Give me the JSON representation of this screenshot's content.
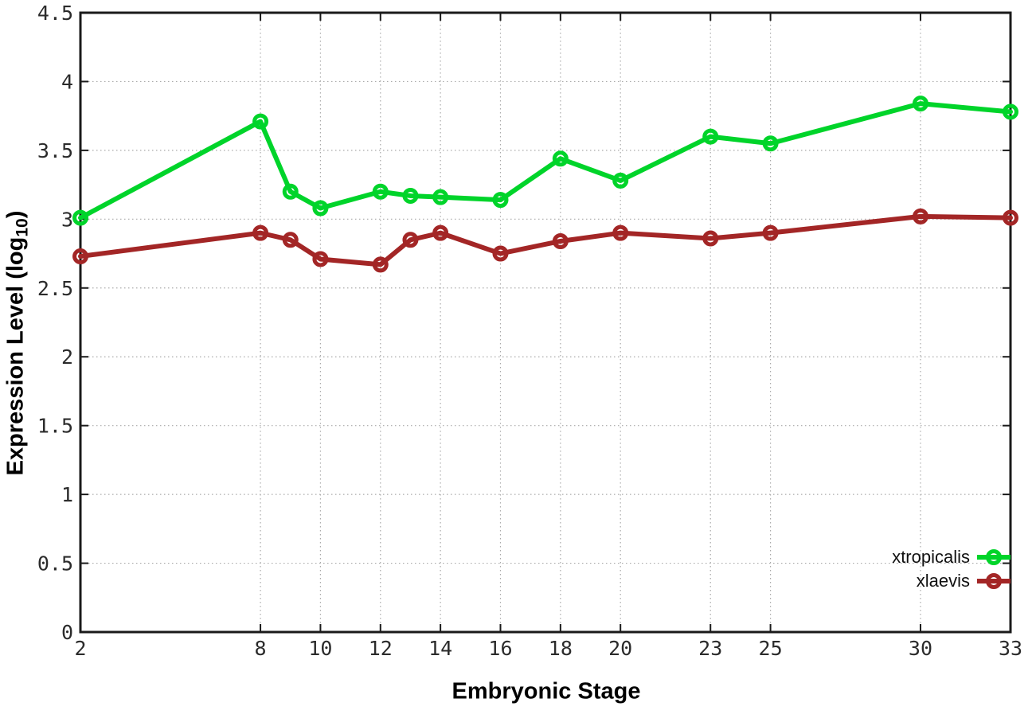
{
  "chart_data": {
    "type": "line",
    "title": "",
    "xlabel": "Embryonic Stage",
    "ylabel": "Expression Level (log10)",
    "ylabel_parts": {
      "main": "Expression Level (log",
      "sub": "10",
      "close": ")"
    },
    "x": [
      2,
      8,
      9,
      10,
      12,
      13,
      14,
      16,
      18,
      20,
      23,
      25,
      30,
      33
    ],
    "series": [
      {
        "name": "xtropicalis",
        "color": "#00d42a",
        "values": [
          3.01,
          3.71,
          3.2,
          3.08,
          3.2,
          3.17,
          3.16,
          3.14,
          3.44,
          3.28,
          3.6,
          3.55,
          3.84,
          3.78
        ]
      },
      {
        "name": "xlaevis",
        "color": "#a32626",
        "values": [
          2.73,
          2.9,
          2.85,
          2.71,
          2.67,
          2.85,
          2.9,
          2.75,
          2.84,
          2.9,
          2.86,
          2.9,
          3.02,
          3.01
        ]
      }
    ],
    "x_ticks": [
      2,
      8,
      10,
      12,
      14,
      16,
      18,
      20,
      23,
      25,
      30,
      33
    ],
    "x_tick_labels": [
      "2",
      "8",
      "10",
      "12",
      "14",
      "16",
      "18",
      "20",
      "23",
      "25",
      "30",
      "33"
    ],
    "y_ticks": [
      0,
      0.5,
      1,
      1.5,
      2,
      2.5,
      3,
      3.5,
      4,
      4.5
    ],
    "y_tick_labels": [
      "0",
      "0.5",
      "1",
      "1.5",
      "2",
      "2.5",
      "3",
      "3.5",
      "4",
      "4.5"
    ],
    "xlim": [
      2,
      33
    ],
    "ylim": [
      0,
      4.5
    ],
    "grid": true,
    "legend_position": "inside-bottom-right",
    "marker": "open-circle",
    "colors": {
      "axis": "#1a1a1a",
      "grid": "#aaaaaa",
      "tick_label": "#2b2b2b",
      "background": "#ffffff"
    }
  }
}
